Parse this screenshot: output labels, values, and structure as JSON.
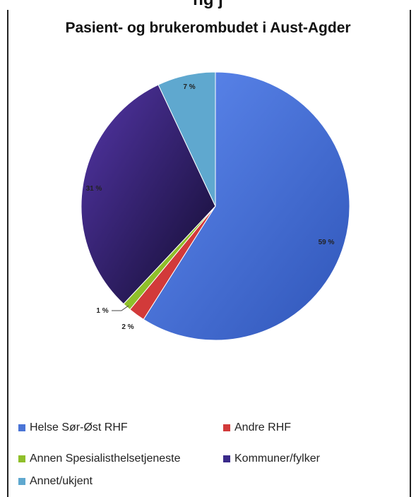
{
  "header_cut_text": "ng                                           j",
  "chart_data": {
    "type": "pie",
    "title": "Pasient- og brukerombudet i Aust-Agder",
    "slices": [
      {
        "name": "Helse Sør-Øst RHF",
        "value": 59,
        "label": "59 %",
        "color": "#4a74d6"
      },
      {
        "name": "Andre RHF",
        "value": 2,
        "label": "2 %",
        "color": "#d23a3a"
      },
      {
        "name": "Annen Spesialisthelsetjeneste",
        "value": 1,
        "label": "1 %",
        "color": "#8fbf2a"
      },
      {
        "name": "Kommuner/fylker",
        "value": 31,
        "label": "31 %",
        "color": "#3a2a8a"
      },
      {
        "name": "Annet/ukjent",
        "value": 7,
        "label": "7 %",
        "color": "#5fa8cf"
      }
    ],
    "start_angle_deg": 0,
    "direction": "clockwise",
    "legend_position": "bottom"
  }
}
